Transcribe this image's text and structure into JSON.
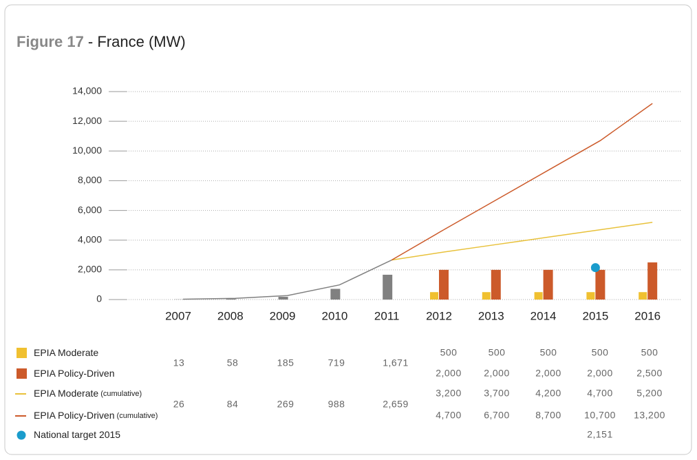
{
  "chart_data": {
    "type": "bar",
    "title": "Figure 17 - France (MW)",
    "categories": [
      "2007",
      "2008",
      "2009",
      "2010",
      "2011",
      "2012",
      "2013",
      "2014",
      "2015",
      "2016"
    ],
    "ylim": [
      0,
      14000
    ],
    "yticks": [
      0,
      {
        "value": 2000,
        "label": "2,000"
      },
      {
        "value": 4000,
        "label": "4,000"
      },
      {
        "value": 6000,
        "label": "6,000"
      },
      {
        "value": 8000,
        "label": "8,000"
      },
      {
        "value": 10000,
        "label": "10,000"
      },
      {
        "value": 12000,
        "label": "12,000"
      },
      {
        "value": 14000,
        "label": "14,000"
      }
    ],
    "grid": true,
    "series": [
      {
        "type": "bar",
        "color": "#808080",
        "values": [
          13,
          58,
          185,
          719,
          1671,
          null,
          null,
          null,
          null,
          null
        ],
        "value_labels": [
          "13",
          "58",
          "185",
          "719",
          "1,671",
          null,
          null,
          null,
          null,
          null
        ]
      },
      {
        "type": "bar",
        "name": "EPIA Moderate",
        "color": "#f0c030",
        "values": [
          null,
          null,
          null,
          null,
          null,
          500,
          500,
          500,
          500,
          500
        ],
        "value_labels": [
          null,
          null,
          null,
          null,
          null,
          "500",
          "500",
          "500",
          "500",
          "500"
        ]
      },
      {
        "type": "bar",
        "name": "EPIA Policy-Driven",
        "color": "#cc5a2a",
        "values": [
          null,
          null,
          null,
          null,
          null,
          2000,
          2000,
          2000,
          2000,
          2500
        ],
        "value_labels": [
          null,
          null,
          null,
          null,
          null,
          "2,000",
          "2,000",
          "2,000",
          "2,000",
          "2,500"
        ]
      },
      {
        "type": "line",
        "color": "#808080",
        "values": [
          26,
          84,
          269,
          988,
          2659,
          null,
          null,
          null,
          null,
          null
        ],
        "value_labels": [
          "26",
          "84",
          "269",
          "988",
          "2,659",
          null,
          null,
          null,
          null,
          null
        ]
      },
      {
        "type": "line",
        "name": "EPIA Moderate (cumulative)",
        "color": "#e8c13a",
        "values": [
          null,
          null,
          null,
          null,
          null,
          3200,
          3700,
          4200,
          4700,
          5200
        ],
        "value_labels": [
          null,
          null,
          null,
          null,
          null,
          "3,200",
          "3,700",
          "4,200",
          "4,700",
          "5,200"
        ]
      },
      {
        "type": "line",
        "name": "EPIA Policy-Driven (cumulative)",
        "color": "#cc5a2a",
        "values": [
          null,
          null,
          null,
          null,
          null,
          4700,
          6700,
          8700,
          10700,
          13200
        ],
        "value_labels": [
          null,
          null,
          null,
          null,
          null,
          "4,700",
          "6,700",
          "8,700",
          "10,700",
          "13,200"
        ]
      },
      {
        "type": "scatter",
        "name": "National target 2015",
        "color": "#1a9ccc",
        "values": [
          null,
          null,
          null,
          null,
          null,
          null,
          null,
          null,
          2151,
          null
        ],
        "value_labels": [
          null,
          null,
          null,
          null,
          null,
          null,
          null,
          null,
          "2,151",
          null
        ]
      }
    ]
  }
}
